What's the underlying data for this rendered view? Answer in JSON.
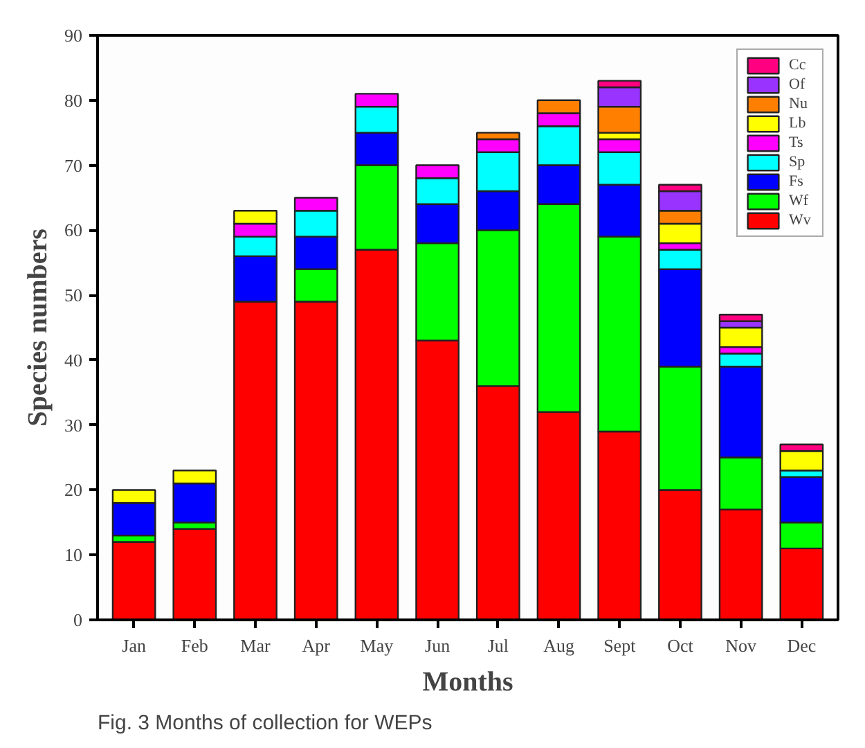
{
  "chart_data": {
    "type": "bar",
    "stacked": true,
    "xlabel": "Months",
    "ylabel": "Species numbers",
    "categories": [
      "Jan",
      "Feb",
      "Mar",
      "Apr",
      "May",
      "Jun",
      "Jul",
      "Aug",
      "Sept",
      "Oct",
      "Nov",
      "Dec"
    ],
    "series": [
      {
        "name": "Wv",
        "color": "#ff0000",
        "values": [
          12,
          14,
          49,
          49,
          57,
          43,
          36,
          32,
          29,
          20,
          17,
          11
        ]
      },
      {
        "name": "Wf",
        "color": "#00ff00",
        "values": [
          1,
          1,
          null,
          5,
          13,
          15,
          24,
          32,
          30,
          19,
          8,
          4
        ]
      },
      {
        "name": "Fs",
        "color": "#0000ff",
        "values": [
          5,
          6,
          7,
          5,
          5,
          6,
          6,
          6,
          8,
          15,
          14,
          7
        ]
      },
      {
        "name": "Sp",
        "color": "#00ffff",
        "values": [
          null,
          null,
          3,
          4,
          4,
          4,
          6,
          6,
          5,
          3,
          2,
          1
        ]
      },
      {
        "name": "Ts",
        "color": "#ff00ff",
        "values": [
          null,
          null,
          2,
          2,
          2,
          2,
          2,
          2,
          2,
          1,
          1,
          null
        ]
      },
      {
        "name": "Lb",
        "color": "#ffff00",
        "values": [
          2,
          2,
          2,
          null,
          null,
          null,
          null,
          null,
          1,
          3,
          3,
          3
        ]
      },
      {
        "name": "Nu",
        "color": "#ff8000",
        "values": [
          null,
          null,
          null,
          null,
          null,
          null,
          1,
          2,
          4,
          2,
          null,
          null
        ]
      },
      {
        "name": "Of",
        "color": "#9933ff",
        "values": [
          null,
          null,
          null,
          null,
          null,
          null,
          null,
          null,
          3,
          3,
          1,
          null
        ]
      },
      {
        "name": "Cc",
        "color": "#ff0080",
        "values": [
          null,
          null,
          null,
          null,
          null,
          null,
          null,
          null,
          1,
          1,
          1,
          1
        ]
      }
    ],
    "ylim": [
      0,
      90
    ],
    "yticks": [
      0,
      10,
      20,
      30,
      40,
      50,
      60,
      70,
      80,
      90
    ],
    "grid": false,
    "legend": "top right",
    "annotations": [
      "Fig. 3  Months of collection for WEPs"
    ]
  }
}
